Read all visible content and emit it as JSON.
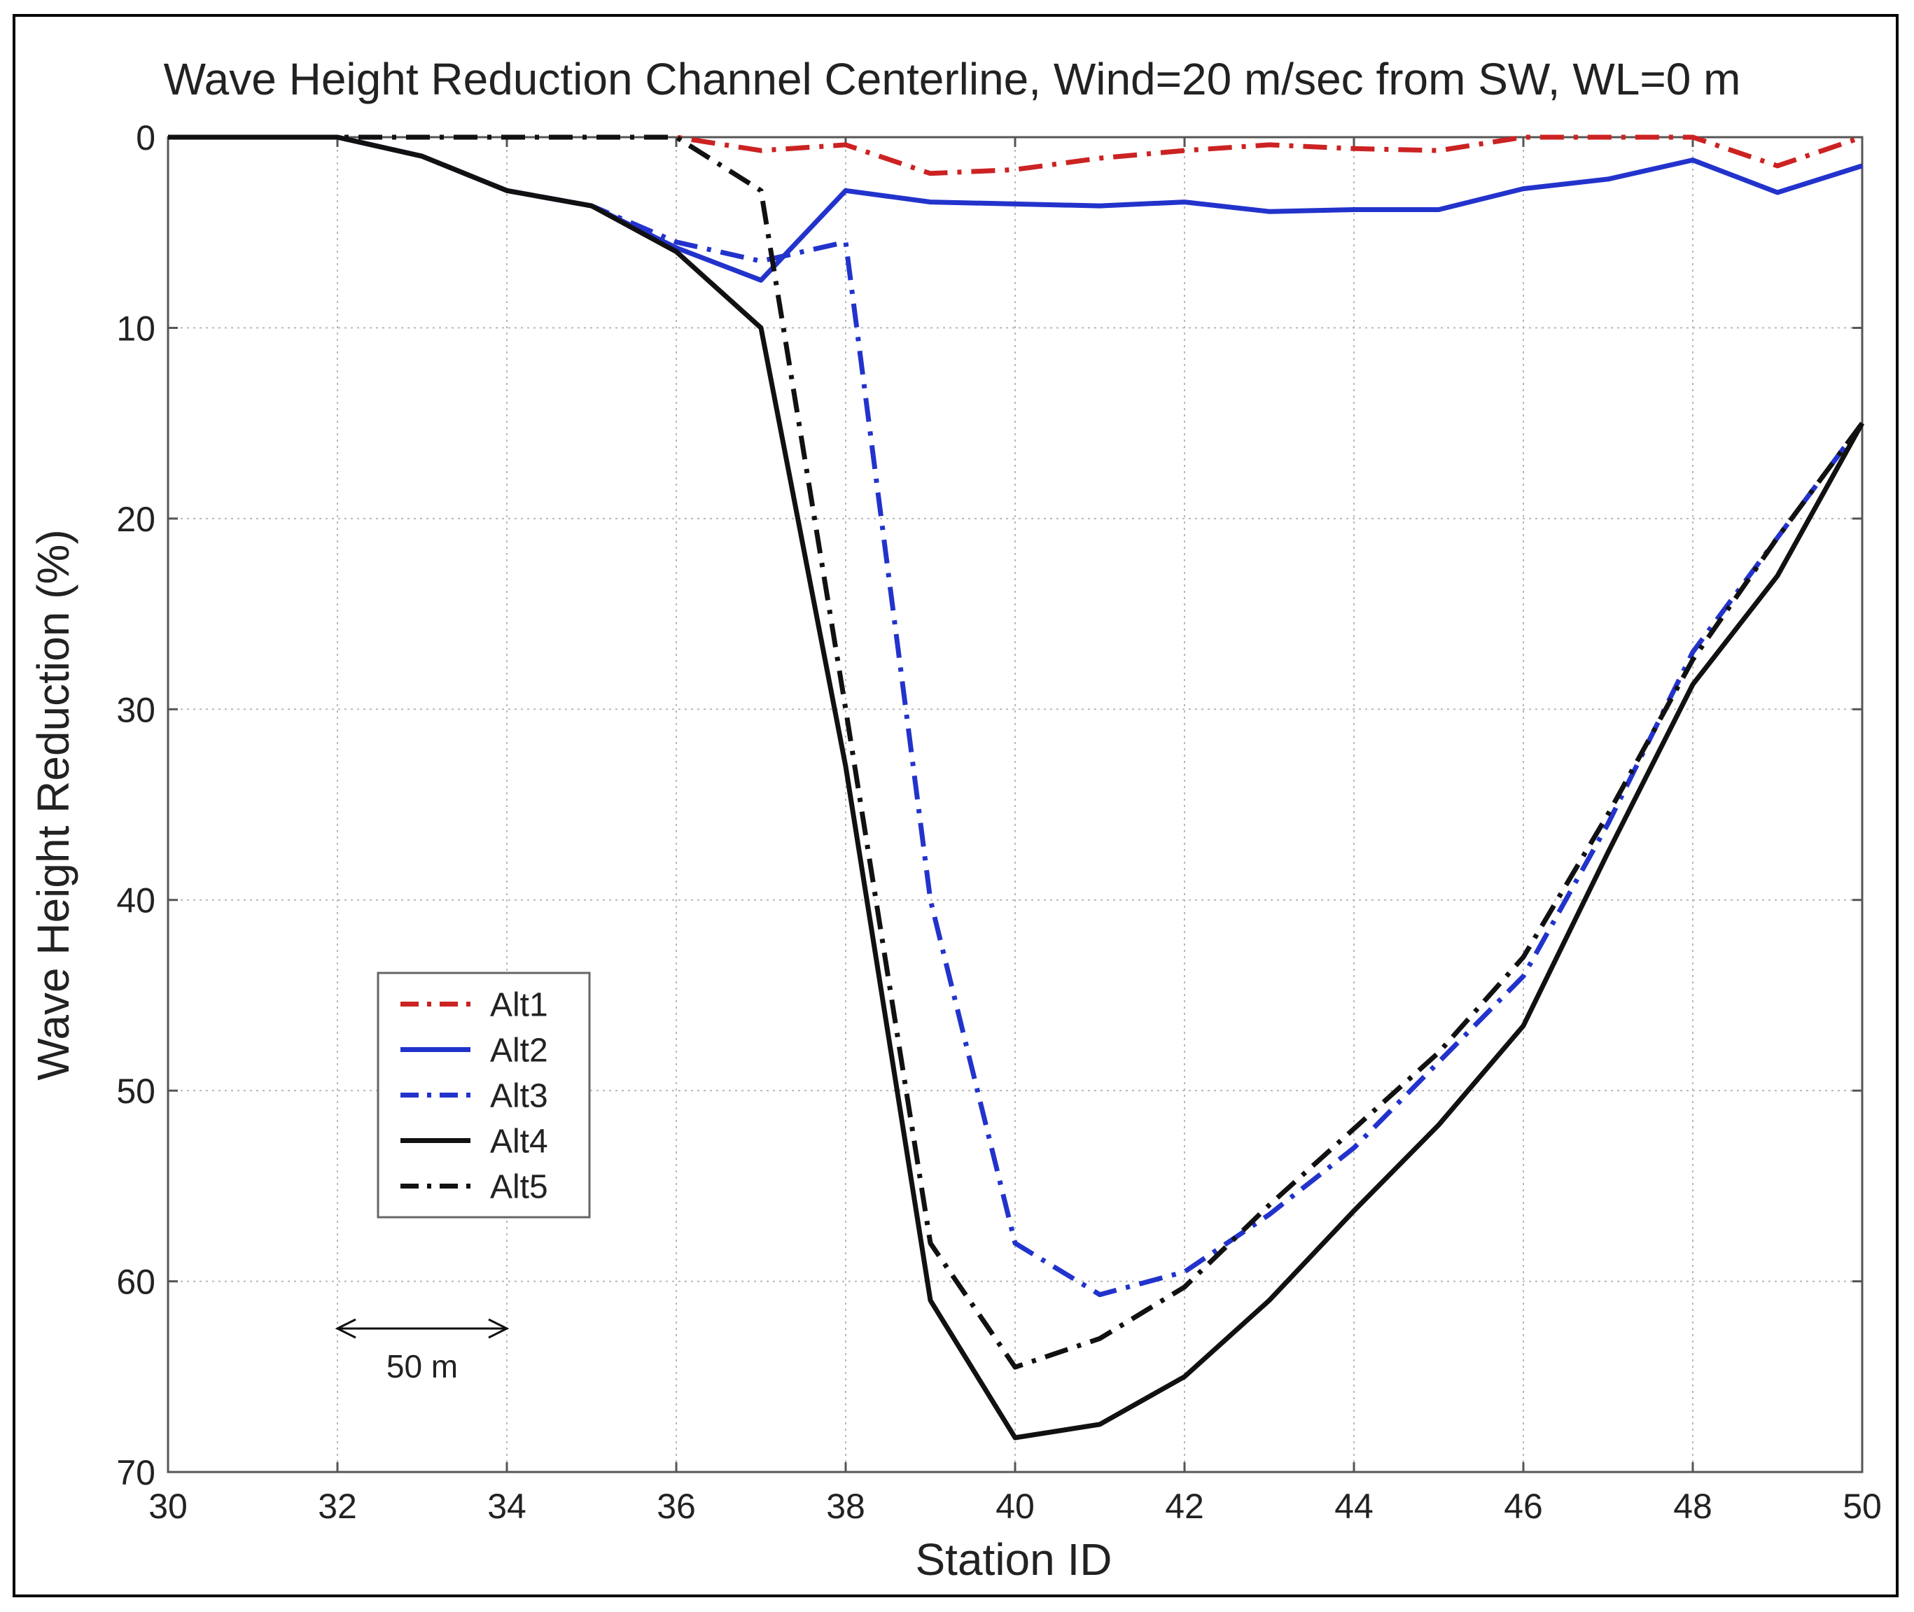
{
  "chart_data": {
    "type": "line",
    "title": "Wave Height Reduction Channel Centerline, Wind=20 m/sec from SW, WL=0 m",
    "xlabel": "Station ID",
    "ylabel": "Wave Height Reduction (%)",
    "xlim": [
      30,
      50
    ],
    "ylim": [
      0,
      70
    ],
    "y_inverted": true,
    "grid": true,
    "legend_position": "lower-left",
    "xticks": [
      30,
      32,
      34,
      36,
      38,
      40,
      42,
      44,
      46,
      48,
      50
    ],
    "yticks": [
      0,
      10,
      20,
      30,
      40,
      50,
      60,
      70
    ],
    "x": [
      30,
      31,
      32,
      33,
      34,
      35,
      36,
      37,
      38,
      39,
      40,
      41,
      42,
      43,
      44,
      45,
      46,
      47,
      48,
      49,
      50
    ],
    "series": [
      {
        "name": "Alt1",
        "color": "#cc2222",
        "style": "dashdot",
        "values": [
          0,
          0,
          0,
          0,
          0,
          0,
          0,
          0.7,
          0.4,
          1.9,
          1.7,
          1.1,
          0.7,
          0.4,
          0.6,
          0.7,
          0,
          0,
          0,
          1.5,
          0
        ]
      },
      {
        "name": "Alt2",
        "color": "#2233cc",
        "style": "solid",
        "values": [
          0,
          0,
          0,
          1,
          2.8,
          3.6,
          5.8,
          7.5,
          2.8,
          3.4,
          3.5,
          3.6,
          3.4,
          3.9,
          3.8,
          3.8,
          2.7,
          2.2,
          1.2,
          2.9,
          1.5
        ]
      },
      {
        "name": "Alt3",
        "color": "#2233cc",
        "style": "dashdot",
        "values": [
          0,
          0,
          0,
          1,
          2.8,
          3.6,
          5.5,
          6.5,
          5.5,
          40,
          58,
          60.7,
          59.5,
          56.5,
          53,
          48.5,
          44,
          36,
          27,
          21,
          15
        ]
      },
      {
        "name": "Alt4",
        "color": "#111111",
        "style": "solid",
        "values": [
          0,
          0,
          0,
          1,
          2.8,
          3.6,
          6,
          10,
          33,
          61,
          68.2,
          67.5,
          65,
          61,
          56.3,
          51.8,
          46.6,
          37.5,
          28.7,
          23,
          15
        ]
      },
      {
        "name": "Alt5",
        "color": "#111111",
        "style": "dashdot",
        "values": [
          0,
          0,
          0,
          0,
          0,
          0,
          0,
          2.8,
          30,
          58,
          64.5,
          63,
          60.3,
          56,
          52,
          48,
          43,
          35.5,
          27.4,
          21,
          15
        ]
      }
    ],
    "scale_bar": {
      "label": "50 m",
      "from_station": 32,
      "to_station": 34
    }
  }
}
